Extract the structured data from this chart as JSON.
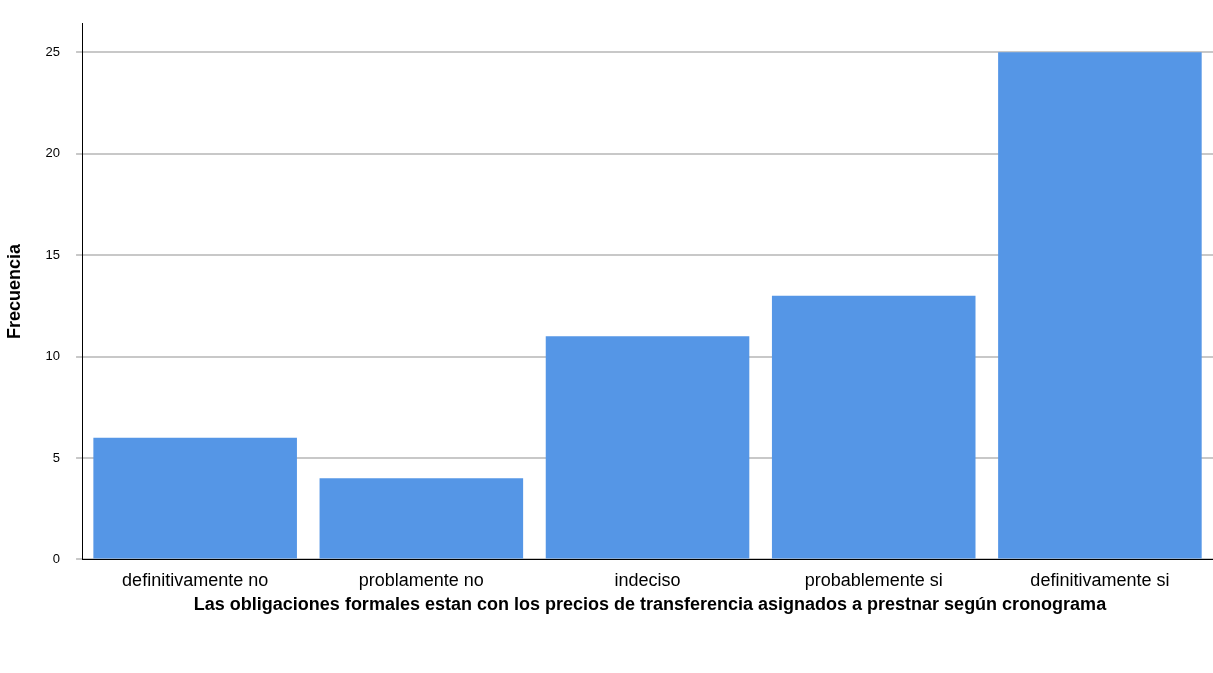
{
  "chart_data": {
    "type": "bar",
    "xlabel": "Las obligaciones formales estan con los precios de transferencia asignados a prestnar según cronograma",
    "ylabel": "Frecuencia",
    "categories": [
      "definitivamente no",
      "problamente no",
      "indeciso",
      "probablemente si",
      "definitivamente si"
    ],
    "values": [
      6,
      4,
      11,
      13,
      25
    ],
    "color": "#5596e6",
    "ylim": [
      0,
      26.4
    ],
    "yticks": [
      0,
      5,
      10,
      15,
      20,
      25
    ],
    "grid": "y",
    "legend": false
  }
}
